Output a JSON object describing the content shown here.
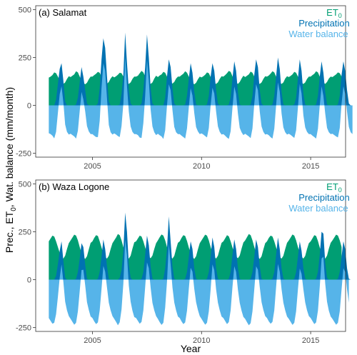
{
  "figure": {
    "ylabel": "Prec., ET",
    "ylabel_sub": "0",
    "ylabel_rest": ", Wat. balance (mm/month)",
    "xlabel": "Year"
  },
  "chart_data": [
    {
      "type": "area",
      "title": "(a) Salamat",
      "x_start": 2003.0,
      "x_step": 0.0833333,
      "xlim": [
        2002.4,
        2016.6
      ],
      "ylim": [
        -270,
        520
      ],
      "x_ticks": [
        2005,
        2010,
        2015
      ],
      "y_ticks": [
        -250,
        0,
        250,
        500
      ],
      "grid": false,
      "legend_position": "top-right",
      "legend": [
        {
          "label": "ET",
          "sub": "0",
          "color": "#009E73"
        },
        {
          "label": "Precipitation",
          "sub": "",
          "color": "#0072B2"
        },
        {
          "label": "Water balance",
          "sub": "",
          "color": "#56B4E9"
        }
      ],
      "series": [
        {
          "name": "ET0",
          "color": "#009E73",
          "values": [
            145,
            150,
            158,
            172,
            168,
            150,
            132,
            120,
            112,
            120,
            138,
            152,
            148,
            155,
            162,
            178,
            172,
            150,
            130,
            118,
            110,
            118,
            136,
            150,
            150,
            158,
            165,
            175,
            170,
            148,
            130,
            120,
            112,
            122,
            140,
            152,
            146,
            152,
            160,
            170,
            168,
            150,
            128,
            118,
            112,
            120,
            138,
            150,
            150,
            155,
            168,
            180,
            172,
            150,
            130,
            118,
            112,
            120,
            140,
            155,
            148,
            156,
            162,
            175,
            170,
            150,
            130,
            120,
            114,
            122,
            140,
            150,
            150,
            158,
            165,
            178,
            170,
            150,
            130,
            118,
            110,
            118,
            136,
            150,
            146,
            152,
            160,
            172,
            168,
            148,
            128,
            118,
            112,
            120,
            138,
            152,
            150,
            158,
            168,
            180,
            175,
            152,
            132,
            120,
            112,
            122,
            140,
            155,
            148,
            155,
            162,
            176,
            170,
            150,
            130,
            120,
            112,
            120,
            138,
            152,
            150,
            156,
            166,
            178,
            172,
            150,
            130,
            118,
            112,
            120,
            140,
            152,
            148,
            154,
            162,
            175,
            170,
            150,
            128,
            118,
            112,
            120,
            138,
            150,
            150,
            158,
            165,
            178,
            172,
            150,
            130,
            120,
            112,
            122,
            140,
            150,
            148,
            155,
            162,
            172,
            168,
            150
          ]
        },
        {
          "name": "Precipitation",
          "color": "#0072B2",
          "values": [
            0,
            0,
            0,
            0,
            30,
            110,
            190,
            220,
            130,
            20,
            0,
            0,
            0,
            0,
            0,
            5,
            40,
            120,
            200,
            150,
            80,
            10,
            0,
            0,
            0,
            0,
            0,
            10,
            90,
            240,
            350,
            300,
            150,
            20,
            0,
            0,
            0,
            0,
            0,
            5,
            60,
            160,
            380,
            220,
            80,
            10,
            0,
            0,
            0,
            0,
            0,
            10,
            80,
            200,
            370,
            250,
            90,
            10,
            0,
            0,
            0,
            0,
            0,
            0,
            40,
            150,
            240,
            200,
            90,
            10,
            0,
            0,
            0,
            0,
            0,
            5,
            50,
            140,
            220,
            170,
            70,
            5,
            0,
            0,
            0,
            0,
            0,
            5,
            50,
            150,
            220,
            180,
            80,
            10,
            0,
            0,
            0,
            0,
            0,
            5,
            40,
            140,
            230,
            180,
            70,
            5,
            0,
            0,
            0,
            0,
            0,
            5,
            50,
            160,
            240,
            200,
            80,
            10,
            0,
            0,
            0,
            0,
            0,
            5,
            50,
            150,
            250,
            190,
            70,
            5,
            0,
            0,
            0,
            0,
            0,
            5,
            40,
            140,
            240,
            180,
            60,
            5,
            0,
            0,
            0,
            0,
            0,
            5,
            50,
            150,
            230,
            170,
            70,
            5,
            0,
            0,
            0,
            0,
            0,
            5,
            50,
            160,
            230,
            180,
            80,
            10,
            0,
            0
          ]
        },
        {
          "name": "Water balance",
          "color": "#56B4E9",
          "values": [
            -145,
            -150,
            -158,
            -172,
            -138,
            -40,
            58,
            100,
            18,
            -100,
            -138,
            -152,
            -148,
            -155,
            -162,
            -173,
            -132,
            -30,
            70,
            32,
            -30,
            -108,
            -136,
            -150,
            -150,
            -158,
            -165,
            -165,
            -80,
            92,
            220,
            180,
            38,
            -102,
            -140,
            -152,
            -146,
            -152,
            -160,
            -165,
            -108,
            10,
            252,
            102,
            -32,
            -110,
            -138,
            -150,
            -150,
            -155,
            -168,
            -170,
            -92,
            50,
            240,
            132,
            -22,
            -110,
            -140,
            -155,
            -148,
            -156,
            -162,
            -175,
            -130,
            0,
            110,
            80,
            -24,
            -112,
            -140,
            -150,
            -150,
            -158,
            -165,
            -173,
            -120,
            -10,
            90,
            52,
            -40,
            -113,
            -136,
            -150,
            -146,
            -152,
            -160,
            -167,
            -118,
            2,
            92,
            62,
            -32,
            -110,
            -138,
            -152,
            -150,
            -158,
            -168,
            -175,
            -135,
            -12,
            98,
            60,
            -42,
            -117,
            -140,
            -155,
            -148,
            -155,
            -162,
            -171,
            -120,
            10,
            110,
            80,
            -32,
            -110,
            -138,
            -152,
            -150,
            -156,
            -166,
            -173,
            -122,
            0,
            120,
            72,
            -42,
            -115,
            -140,
            -152,
            -148,
            -154,
            -162,
            -170,
            -130,
            -10,
            112,
            62,
            -52,
            -115,
            -138,
            -150,
            -150,
            -158,
            -165,
            -173,
            -122,
            0,
            100,
            50,
            -42,
            -117,
            -140,
            -150,
            -148,
            -155,
            -162,
            -167,
            -118,
            10,
            100,
            60,
            -32,
            -112,
            -140,
            -150
          ]
        }
      ]
    },
    {
      "type": "area",
      "title": "(b) Waza Logone",
      "x_start": 2003.0,
      "x_step": 0.0833333,
      "xlim": [
        2002.4,
        2016.6
      ],
      "ylim": [
        -270,
        520
      ],
      "x_ticks": [
        2005,
        2010,
        2015
      ],
      "y_ticks": [
        -250,
        0,
        250,
        500
      ],
      "grid": false,
      "legend_position": "top-right",
      "legend": [
        {
          "label": "ET",
          "sub": "0",
          "color": "#009E73"
        },
        {
          "label": "Precipitation",
          "sub": "",
          "color": "#0072B2"
        },
        {
          "label": "Water balance",
          "sub": "",
          "color": "#56B4E9"
        }
      ],
      "series": [
        {
          "name": "ET0",
          "color": "#009E73",
          "values": [
            200,
            215,
            230,
            225,
            200,
            170,
            140,
            120,
            110,
            125,
            160,
            190,
            205,
            220,
            235,
            230,
            205,
            170,
            140,
            118,
            108,
            122,
            158,
            192,
            200,
            218,
            232,
            228,
            200,
            168,
            138,
            118,
            110,
            125,
            160,
            190,
            205,
            220,
            238,
            232,
            205,
            170,
            140,
            120,
            110,
            125,
            162,
            195,
            200,
            215,
            230,
            225,
            200,
            168,
            140,
            120,
            112,
            126,
            160,
            190,
            205,
            222,
            236,
            230,
            205,
            170,
            142,
            120,
            110,
            124,
            160,
            192,
            200,
            218,
            232,
            228,
            202,
            168,
            138,
            118,
            108,
            122,
            158,
            190,
            205,
            220,
            235,
            230,
            205,
            170,
            140,
            120,
            110,
            125,
            160,
            192,
            200,
            216,
            232,
            226,
            200,
            168,
            140,
            120,
            112,
            126,
            162,
            194,
            205,
            222,
            238,
            232,
            205,
            170,
            140,
            118,
            108,
            122,
            158,
            190,
            200,
            218,
            230,
            225,
            200,
            168,
            138,
            118,
            110,
            125,
            160,
            192,
            205,
            220,
            236,
            230,
            205,
            170,
            142,
            120,
            110,
            124,
            160,
            190,
            200,
            216,
            232,
            228,
            202,
            168,
            140,
            120,
            110,
            125,
            162,
            192,
            205,
            220,
            235,
            230,
            205,
            170
          ]
        },
        {
          "name": "Precipitation",
          "color": "#0072B2",
          "values": [
            0,
            0,
            0,
            0,
            20,
            80,
            150,
            200,
            100,
            10,
            0,
            0,
            0,
            0,
            0,
            5,
            40,
            110,
            190,
            170,
            80,
            5,
            0,
            0,
            0,
            0,
            0,
            5,
            40,
            120,
            210,
            160,
            70,
            5,
            0,
            0,
            0,
            0,
            0,
            10,
            50,
            150,
            350,
            250,
            80,
            10,
            0,
            0,
            0,
            0,
            0,
            5,
            40,
            130,
            230,
            180,
            70,
            5,
            0,
            0,
            0,
            0,
            0,
            5,
            60,
            160,
            330,
            200,
            70,
            5,
            0,
            0,
            0,
            0,
            0,
            5,
            40,
            120,
            200,
            160,
            60,
            5,
            0,
            0,
            0,
            0,
            0,
            5,
            40,
            120,
            220,
            170,
            60,
            5,
            0,
            0,
            0,
            0,
            0,
            5,
            40,
            130,
            210,
            160,
            60,
            5,
            0,
            0,
            0,
            0,
            0,
            5,
            40,
            120,
            210,
            170,
            70,
            5,
            0,
            0,
            0,
            0,
            0,
            5,
            40,
            130,
            220,
            160,
            60,
            5,
            0,
            0,
            0,
            0,
            0,
            5,
            40,
            120,
            200,
            150,
            60,
            5,
            0,
            0,
            0,
            0,
            0,
            5,
            40,
            130,
            250,
            240,
            90,
            10,
            0,
            0,
            0,
            0,
            0,
            5,
            40,
            120,
            200,
            160,
            60,
            5,
            0,
            0
          ]
        },
        {
          "name": "Water balance",
          "color": "#56B4E9",
          "values": [
            -200,
            -215,
            -230,
            -225,
            -180,
            -90,
            10,
            80,
            -10,
            -115,
            -160,
            -190,
            -205,
            -220,
            -235,
            -225,
            -165,
            -60,
            50,
            52,
            -28,
            -117,
            -158,
            -192,
            -200,
            -218,
            -232,
            -223,
            -160,
            -48,
            72,
            42,
            -40,
            -120,
            -160,
            -190,
            -205,
            -220,
            -238,
            -222,
            -155,
            -20,
            210,
            130,
            -30,
            -115,
            -162,
            -195,
            -200,
            -215,
            -230,
            -220,
            -160,
            -38,
            90,
            60,
            -42,
            -121,
            -160,
            -190,
            -205,
            -222,
            -236,
            -225,
            -145,
            -10,
            188,
            80,
            -40,
            -119,
            -160,
            -192,
            -200,
            -218,
            -232,
            -223,
            -162,
            -48,
            62,
            42,
            -48,
            -117,
            -158,
            -190,
            -205,
            -220,
            -235,
            -225,
            -165,
            -50,
            80,
            50,
            -50,
            -120,
            -160,
            -192,
            -200,
            -216,
            -232,
            -221,
            -160,
            -38,
            70,
            40,
            -52,
            -121,
            -162,
            -194,
            -205,
            -222,
            -238,
            -227,
            -165,
            -50,
            70,
            52,
            -38,
            -117,
            -158,
            -190,
            -200,
            -218,
            -230,
            -220,
            -160,
            -38,
            82,
            42,
            -50,
            -120,
            -160,
            -192,
            -205,
            -220,
            -236,
            -225,
            -165,
            -50,
            58,
            30,
            -50,
            -119,
            -160,
            -190,
            -200,
            -216,
            -232,
            -223,
            -162,
            -38,
            110,
            120,
            -20,
            -115,
            -162,
            -192,
            -205,
            -220,
            -235,
            -225,
            -165,
            -50,
            60,
            40,
            -50,
            -120
          ]
        }
      ]
    }
  ]
}
